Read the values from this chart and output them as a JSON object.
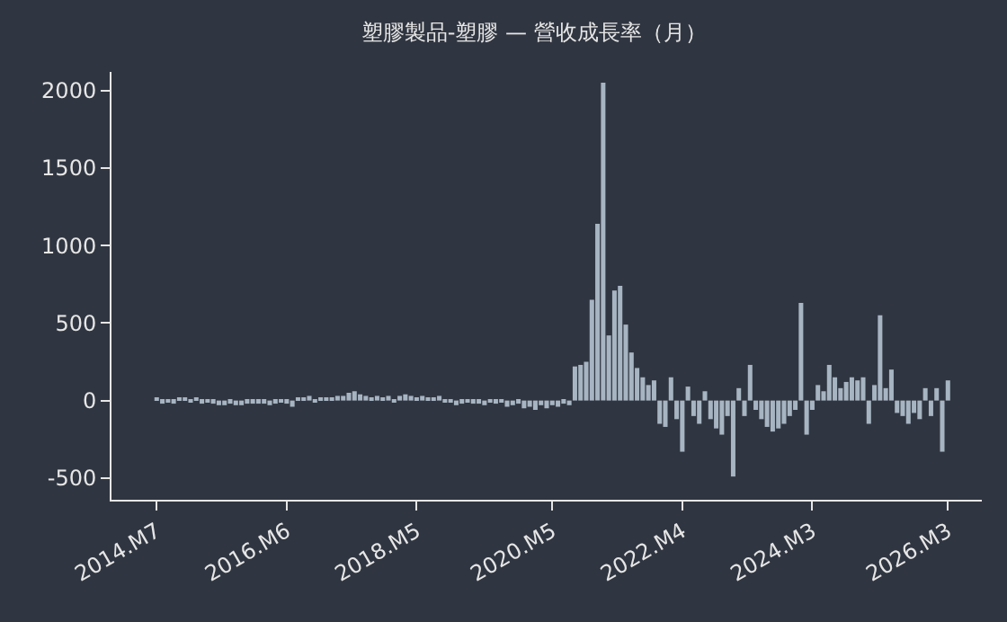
{
  "chart_data": {
    "type": "bar",
    "title": "塑膠製品-塑膠 — 營收成長率（月）",
    "categories": [
      "2014.M7",
      null,
      null,
      null,
      null,
      null,
      null,
      null,
      null,
      null,
      null,
      null,
      null,
      null,
      null,
      null,
      null,
      null,
      null,
      null,
      null,
      null,
      null,
      "2016.M6",
      null,
      null,
      null,
      null,
      null,
      null,
      null,
      null,
      null,
      null,
      null,
      null,
      null,
      null,
      null,
      null,
      null,
      null,
      null,
      null,
      null,
      null,
      "2018.M5",
      null,
      null,
      null,
      null,
      null,
      null,
      null,
      null,
      null,
      null,
      null,
      null,
      null,
      null,
      null,
      null,
      null,
      null,
      null,
      null,
      null,
      null,
      null,
      "2020.M5",
      null,
      null,
      null,
      null,
      null,
      null,
      null,
      null,
      null,
      null,
      null,
      null,
      null,
      null,
      null,
      null,
      null,
      null,
      null,
      null,
      null,
      null,
      "2022.M4",
      null,
      null,
      null,
      null,
      null,
      null,
      null,
      null,
      null,
      null,
      null,
      null,
      null,
      null,
      null,
      null,
      null,
      null,
      null,
      null,
      null,
      null,
      "2024.M3",
      null,
      null,
      null,
      null,
      null,
      null,
      null,
      null,
      null,
      null,
      null,
      null,
      null,
      null,
      null,
      null,
      null,
      null,
      null,
      null,
      null,
      null,
      null,
      "2026.M3"
    ],
    "values": [
      10,
      -20,
      -10,
      -20,
      10,
      10,
      -10,
      10,
      -20,
      -10,
      -20,
      -30,
      -30,
      -20,
      -30,
      -30,
      -20,
      -20,
      -20,
      -20,
      -30,
      -20,
      -10,
      -20,
      -40,
      10,
      20,
      30,
      -10,
      10,
      20,
      20,
      30,
      30,
      50,
      60,
      40,
      30,
      20,
      30,
      20,
      30,
      -10,
      30,
      40,
      30,
      20,
      30,
      20,
      20,
      30,
      -10,
      -10,
      -30,
      -20,
      -10,
      -20,
      -20,
      -30,
      -10,
      -20,
      -10,
      -40,
      -30,
      -20,
      -50,
      -40,
      -60,
      -30,
      -50,
      -30,
      -40,
      -20,
      -30,
      220,
      230,
      250,
      650,
      1140,
      2050,
      420,
      710,
      740,
      490,
      310,
      210,
      150,
      100,
      130,
      -150,
      -170,
      150,
      -120,
      -330,
      90,
      -100,
      -150,
      60,
      -120,
      -180,
      -220,
      -100,
      -490,
      80,
      -100,
      230,
      -60,
      -120,
      -170,
      -200,
      -180,
      -150,
      -100,
      -60,
      630,
      -220,
      -60,
      100,
      60,
      230,
      150,
      80,
      120,
      150,
      130,
      150,
      -150,
      100,
      550,
      80,
      200,
      -80,
      -100,
      -150,
      -80,
      -120,
      80,
      -100,
      80,
      -330,
      130
    ],
    "color": "#a7b4c2",
    "ylim": [
      -640,
      2120
    ],
    "yticks": [
      -500,
      0,
      500,
      1000,
      1500,
      2000
    ],
    "grid": false
  }
}
